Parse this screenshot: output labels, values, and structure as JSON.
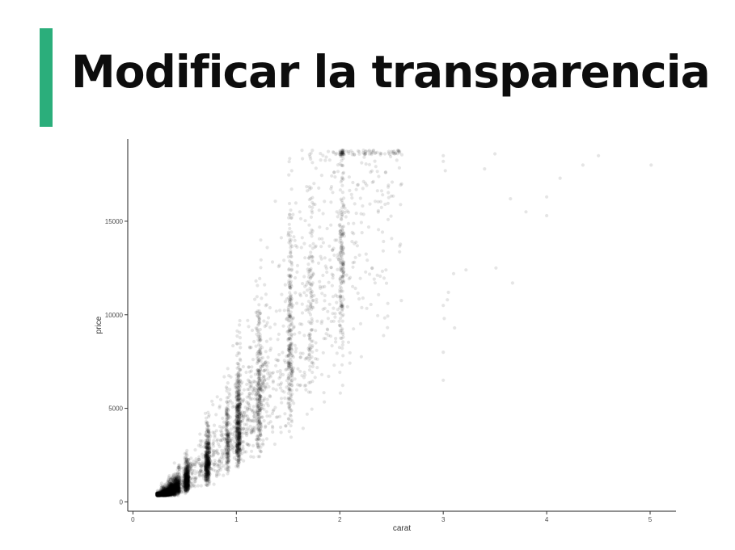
{
  "slide": {
    "title": "Modificar la transparencia",
    "accent_color": "#2bae7b"
  },
  "chart_data": {
    "type": "scatter",
    "xlabel": "carat",
    "ylabel": "price",
    "xlim": [
      -0.05,
      5.25
    ],
    "ylim": [
      -500,
      19400
    ],
    "xticks": [
      0,
      1,
      2,
      3,
      4,
      5
    ],
    "xtick_labels": [
      "0",
      "1",
      "2",
      "3",
      "4",
      "5"
    ],
    "yticks": [
      0,
      5000,
      10000,
      15000
    ],
    "ytick_labels": [
      "0",
      "5000",
      "10000",
      "15000"
    ],
    "grid": false,
    "point_color": "#000000",
    "point_alpha": 0.1,
    "outliers": [
      {
        "x": 3.0,
        "y": 18500
      },
      {
        "x": 3.0,
        "y": 18200
      },
      {
        "x": 3.02,
        "y": 17700
      },
      {
        "x": 3.05,
        "y": 11200
      },
      {
        "x": 3.04,
        "y": 10800
      },
      {
        "x": 3.0,
        "y": 10500
      },
      {
        "x": 3.01,
        "y": 9800
      },
      {
        "x": 3.0,
        "y": 8000
      },
      {
        "x": 3.0,
        "y": 6500
      },
      {
        "x": 3.1,
        "y": 12200
      },
      {
        "x": 3.22,
        "y": 12400
      },
      {
        "x": 3.4,
        "y": 17800
      },
      {
        "x": 3.5,
        "y": 18600
      },
      {
        "x": 3.51,
        "y": 12500
      },
      {
        "x": 3.67,
        "y": 11700
      },
      {
        "x": 3.65,
        "y": 16200
      },
      {
        "x": 4.0,
        "y": 16300
      },
      {
        "x": 4.0,
        "y": 15300
      },
      {
        "x": 4.13,
        "y": 17300
      },
      {
        "x": 4.5,
        "y": 18500
      },
      {
        "x": 5.01,
        "y": 18000
      },
      {
        "x": 3.11,
        "y": 9300
      },
      {
        "x": 3.8,
        "y": 15500
      },
      {
        "x": 4.35,
        "y": 18000
      }
    ]
  }
}
